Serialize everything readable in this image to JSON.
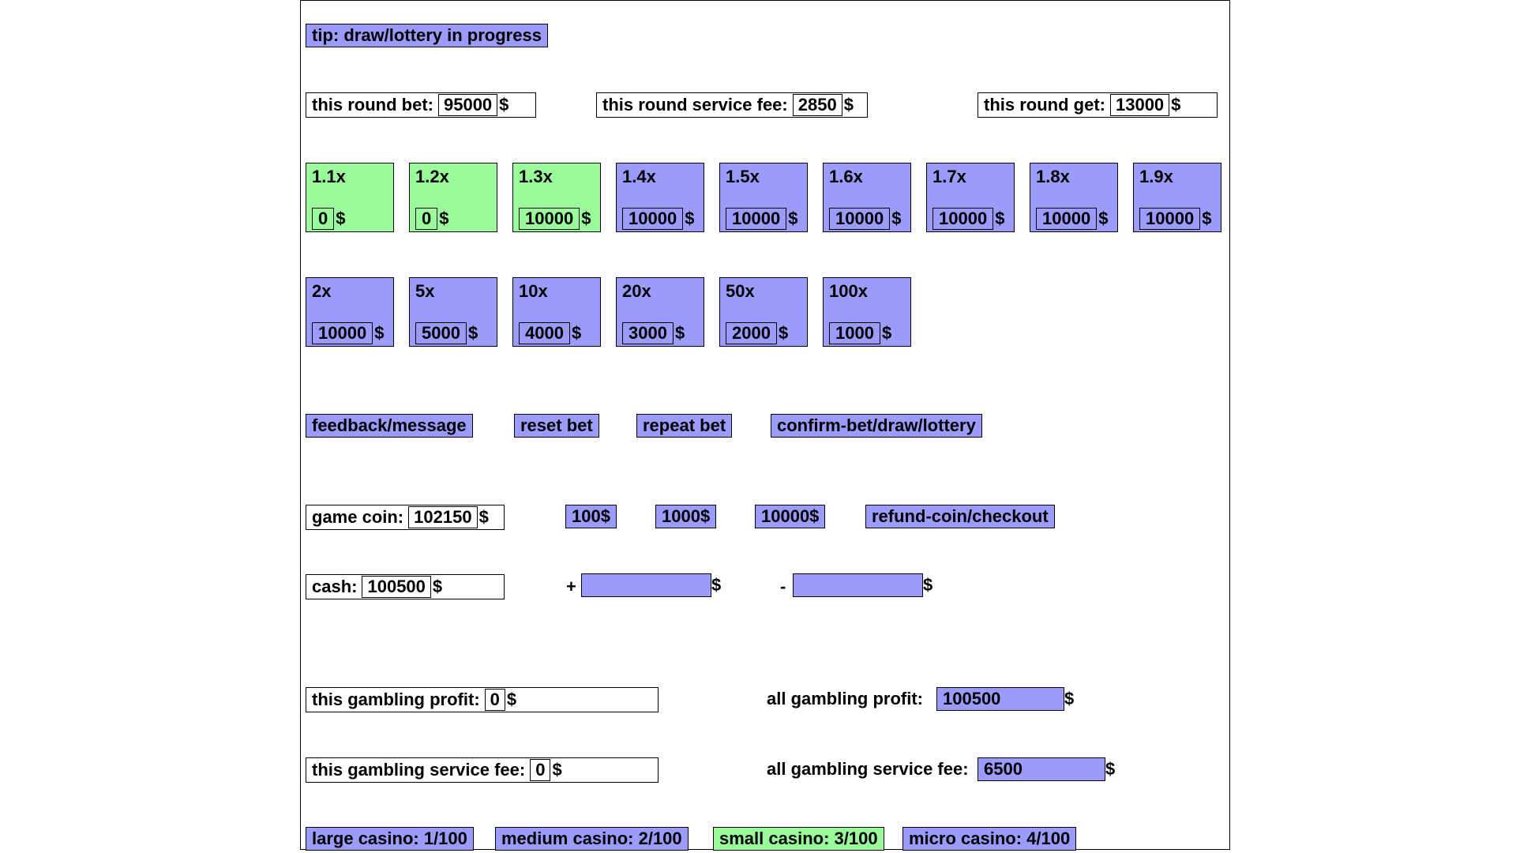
{
  "tip": "tip: draw/lottery in progress",
  "round": {
    "bet_label": "this round bet:",
    "bet_value": "95000",
    "fee_label": "this round service fee:",
    "fee_value": "2850",
    "get_label": "this round get:",
    "get_value": "13000",
    "currency": "$"
  },
  "multipliers_row1": [
    {
      "label": "1.1x",
      "bet": "0",
      "state": "active"
    },
    {
      "label": "1.2x",
      "bet": "0",
      "state": "active"
    },
    {
      "label": "1.3x",
      "bet": "10000",
      "state": "active"
    },
    {
      "label": "1.4x",
      "bet": "10000",
      "state": "normal"
    },
    {
      "label": "1.5x",
      "bet": "10000",
      "state": "normal"
    },
    {
      "label": "1.6x",
      "bet": "10000",
      "state": "normal"
    },
    {
      "label": "1.7x",
      "bet": "10000",
      "state": "normal"
    },
    {
      "label": "1.8x",
      "bet": "10000",
      "state": "normal"
    },
    {
      "label": "1.9x",
      "bet": "10000",
      "state": "normal"
    }
  ],
  "multipliers_row2": [
    {
      "label": "2x",
      "bet": "10000",
      "state": "normal"
    },
    {
      "label": "5x",
      "bet": "5000",
      "state": "normal"
    },
    {
      "label": "10x",
      "bet": "4000",
      "state": "normal"
    },
    {
      "label": "20x",
      "bet": "3000",
      "state": "normal"
    },
    {
      "label": "50x",
      "bet": "2000",
      "state": "normal"
    },
    {
      "label": "100x",
      "bet": "1000",
      "state": "normal"
    }
  ],
  "actions": {
    "feedback": "feedback/message",
    "reset": "reset bet",
    "repeat": "repeat bet",
    "confirm": "confirm-bet/draw/lottery"
  },
  "coin": {
    "label": "game coin:",
    "value": "102150",
    "btn_100": "100$",
    "btn_1000": "1000$",
    "btn_10000": "10000$",
    "refund": "refund-coin/checkout"
  },
  "cash": {
    "label": "cash:",
    "value": "100500",
    "plus": "+",
    "minus": "-",
    "plus_value": "",
    "minus_value": ""
  },
  "profit": {
    "this_label": "this gambling profit:",
    "this_value": "0",
    "all_label": "all gambling profit:",
    "all_value": "100500",
    "this_fee_label": "this gambling service fee:",
    "this_fee_value": "0",
    "all_fee_label": "all gambling service fee:",
    "all_fee_value": "6500"
  },
  "casinos": [
    {
      "label": "large casino: 1/100",
      "state": "normal"
    },
    {
      "label": "medium casino: 2/100",
      "state": "normal"
    },
    {
      "label": "small casino: 3/100",
      "state": "active"
    },
    {
      "label": "micro casino: 4/100",
      "state": "normal"
    }
  ],
  "colors": {
    "normal": "#9b9bfb",
    "active": "#99fb99"
  }
}
